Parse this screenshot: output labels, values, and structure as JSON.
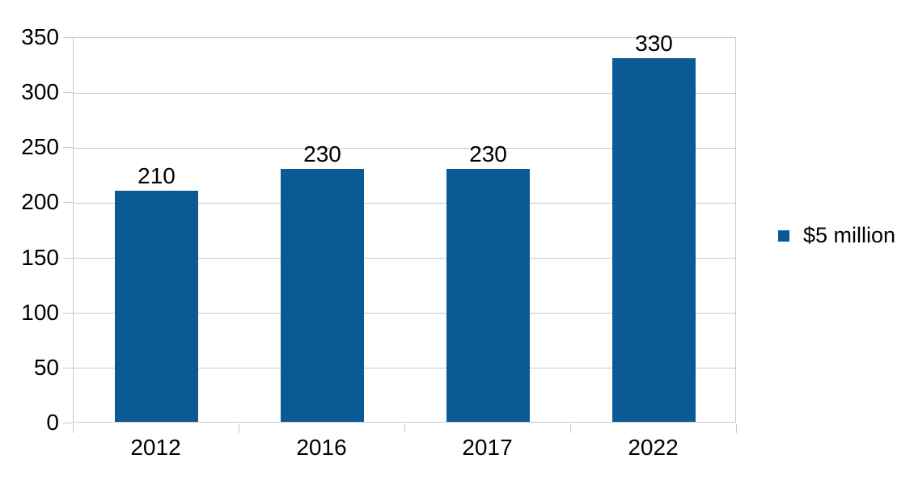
{
  "chart_data": {
    "type": "bar",
    "title": "",
    "xlabel": "",
    "ylabel": "",
    "categories": [
      "2012",
      "2016",
      "2017",
      "2022"
    ],
    "series": [
      {
        "name": "$5 million",
        "values": [
          210,
          230,
          230,
          330
        ]
      }
    ],
    "data_labels_shown": true,
    "data_labels": [
      "210",
      "230",
      "230",
      "330"
    ],
    "ylim": [
      0,
      350
    ],
    "ytick_interval": 50,
    "yticks": [
      "0",
      "50",
      "100",
      "150",
      "200",
      "250",
      "300",
      "350"
    ],
    "grid": true,
    "legend": {
      "label": "$5 million",
      "position": "right"
    },
    "colors": {
      "bar": "#0b5a96",
      "gridline": "#c9c9c9",
      "axis_border": "#c9c9c9",
      "text": "#000000",
      "background": "#ffffff"
    }
  }
}
